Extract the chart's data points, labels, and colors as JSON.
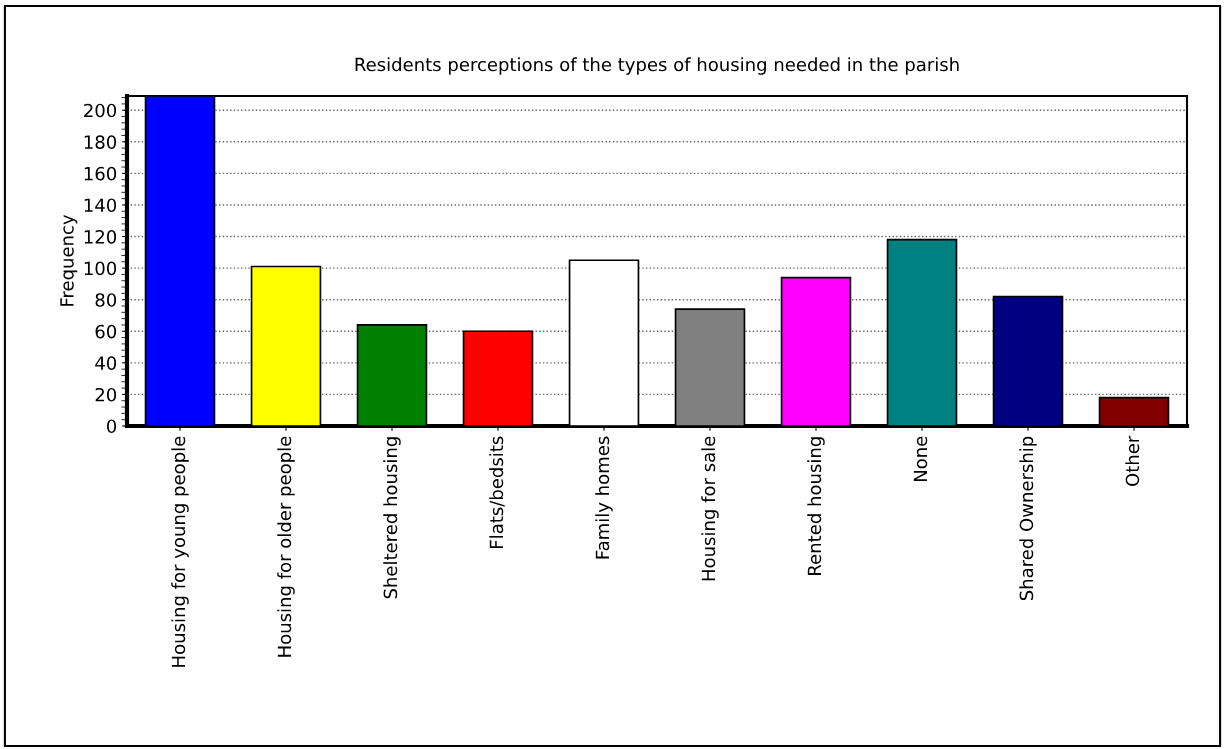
{
  "chart_data": {
    "type": "bar",
    "title": "Residents perceptions of the types of housing needed in the parish",
    "ylabel": "Frequency",
    "categories": [
      "Housing for young people",
      "Housing for older people",
      "Sheltered housing",
      "Flats/bedsits",
      "Family homes",
      "Housing for sale",
      "Rented housing",
      "None",
      "Shared Ownership",
      "Other"
    ],
    "values": [
      209,
      101,
      64,
      60,
      105,
      74,
      94,
      118,
      82,
      18
    ],
    "colors": [
      "#0000ff",
      "#ffff00",
      "#008000",
      "#ff0000",
      "#ffffff",
      "#808080",
      "#ff00ff",
      "#008080",
      "#000080",
      "#800000"
    ],
    "ylim": [
      0,
      209
    ],
    "yticks": [
      0,
      20,
      40,
      60,
      80,
      100,
      120,
      140,
      160,
      180,
      200
    ],
    "grid": "y",
    "legend": false
  }
}
